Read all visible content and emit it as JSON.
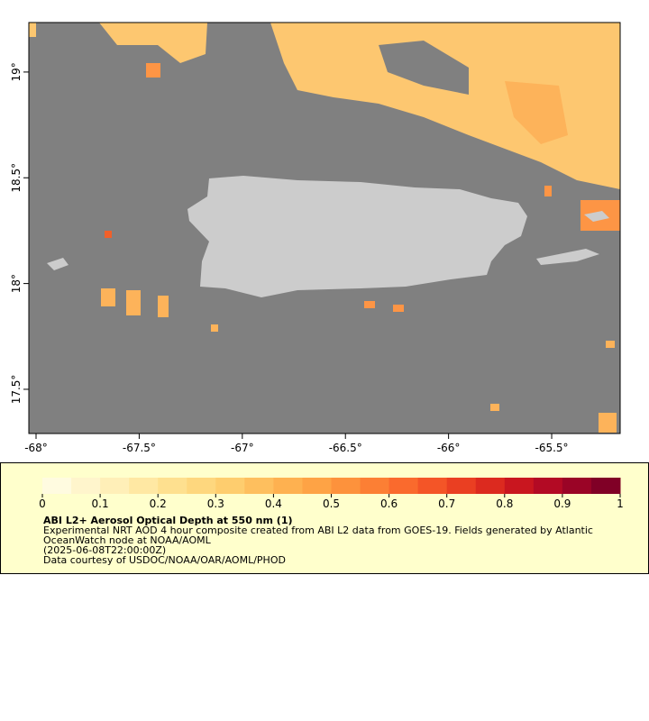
{
  "map": {
    "lonlim": [
      -68.035,
      -65.168
    ],
    "latlim": [
      17.291,
      19.234
    ],
    "lon_ticks": [
      {
        "value": -68,
        "label": "-68°"
      },
      {
        "value": -67.5,
        "label": "-67.5°"
      },
      {
        "value": -67,
        "label": "-67°"
      },
      {
        "value": -66.5,
        "label": "-66.5°"
      },
      {
        "value": -66,
        "label": "-66°"
      },
      {
        "value": -65.5,
        "label": "-65.5°"
      }
    ],
    "lat_ticks": [
      {
        "value": 17.5,
        "label": "17.5°"
      },
      {
        "value": 18,
        "label": "18°"
      },
      {
        "value": 18.5,
        "label": "18.5°"
      },
      {
        "value": 19,
        "label": "19°"
      }
    ]
  },
  "colorbar": {
    "ticks": [
      0,
      0.1,
      0.2,
      0.3,
      0.4,
      0.5,
      0.6,
      0.7,
      0.8,
      0.9,
      1
    ],
    "colors": [
      "#fffbe0",
      "#fff5cc",
      "#ffefb8",
      "#ffe8a3",
      "#fee08f",
      "#fed77e",
      "#fecd6e",
      "#febf5e",
      "#feb150",
      "#fea345",
      "#fd923c",
      "#fc7f34",
      "#fa6a2d",
      "#f45527",
      "#ea3f22",
      "#dc2a1f",
      "#c9161f",
      "#b30a24",
      "#9a0426",
      "#800026"
    ]
  },
  "caption": {
    "title": "ABI L2+ Aerosol Optical Depth at 550 nm (1)",
    "lines": [
      "Experimental NRT AOD 4 hour composite created from ABI L2 data from GOES-19. Fields generated by Atlantic",
      "OceanWatch node at NOAA/AOML",
      "(2025-06-08T22:00:00Z)",
      "Data courtesy of USDOC/NOAA/OAR/AOML/PHOD"
    ]
  }
}
